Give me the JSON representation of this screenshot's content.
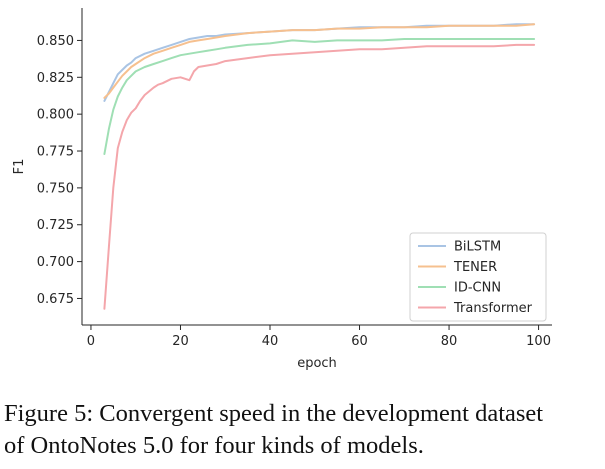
{
  "caption": {
    "line1": "Figure 5: Convergent speed in the development dataset",
    "line2": "of OntoNotes 5.0 for four kinds of models."
  },
  "chart_data": {
    "type": "line",
    "title": "",
    "xlabel": "epoch",
    "ylabel": "F1",
    "xlim": [
      -2,
      103
    ],
    "ylim": [
      0.657,
      0.872
    ],
    "x_ticks": [
      0,
      20,
      40,
      60,
      80,
      100
    ],
    "y_ticks": [
      0.675,
      0.7,
      0.725,
      0.75,
      0.775,
      0.8,
      0.825,
      0.85
    ],
    "x_tick_labels": [
      "0",
      "20",
      "40",
      "60",
      "80",
      "100"
    ],
    "y_tick_labels": [
      "0.675",
      "0.700",
      "0.725",
      "0.750",
      "0.775",
      "0.800",
      "0.825",
      "0.850"
    ],
    "grid": false,
    "legend_position": "lower-right",
    "series": [
      {
        "name": "BiLSTM",
        "color": "#a9c4e4",
        "x": [
          3,
          4,
          5,
          6,
          7,
          8,
          9,
          10,
          12,
          14,
          16,
          18,
          20,
          22,
          24,
          26,
          28,
          30,
          35,
          40,
          45,
          50,
          55,
          60,
          65,
          70,
          75,
          80,
          85,
          90,
          95,
          99
        ],
        "y": [
          0.809,
          0.815,
          0.821,
          0.827,
          0.83,
          0.833,
          0.835,
          0.838,
          0.841,
          0.843,
          0.845,
          0.847,
          0.849,
          0.851,
          0.852,
          0.853,
          0.853,
          0.854,
          0.855,
          0.856,
          0.857,
          0.857,
          0.858,
          0.859,
          0.859,
          0.859,
          0.86,
          0.86,
          0.86,
          0.86,
          0.861,
          0.861
        ]
      },
      {
        "name": "TENER",
        "color": "#f6c08f",
        "x": [
          3,
          4,
          5,
          6,
          7,
          8,
          9,
          10,
          12,
          14,
          16,
          18,
          20,
          22,
          24,
          26,
          28,
          30,
          35,
          40,
          45,
          50,
          55,
          60,
          65,
          70,
          75,
          80,
          85,
          90,
          95,
          99
        ],
        "y": [
          0.811,
          0.814,
          0.818,
          0.822,
          0.826,
          0.829,
          0.832,
          0.834,
          0.838,
          0.841,
          0.843,
          0.845,
          0.847,
          0.849,
          0.85,
          0.851,
          0.852,
          0.853,
          0.855,
          0.856,
          0.857,
          0.857,
          0.858,
          0.858,
          0.859,
          0.859,
          0.859,
          0.86,
          0.86,
          0.86,
          0.86,
          0.861
        ]
      },
      {
        "name": "ID-CNN",
        "color": "#9fdfb4",
        "x": [
          3,
          4,
          5,
          6,
          7,
          8,
          9,
          10,
          12,
          14,
          16,
          18,
          20,
          22,
          24,
          26,
          28,
          30,
          35,
          40,
          45,
          50,
          55,
          60,
          65,
          70,
          75,
          80,
          85,
          90,
          95,
          99
        ],
        "y": [
          0.773,
          0.79,
          0.803,
          0.812,
          0.818,
          0.823,
          0.826,
          0.829,
          0.832,
          0.834,
          0.836,
          0.838,
          0.84,
          0.841,
          0.842,
          0.843,
          0.844,
          0.845,
          0.847,
          0.848,
          0.85,
          0.849,
          0.85,
          0.85,
          0.85,
          0.851,
          0.851,
          0.851,
          0.851,
          0.851,
          0.851,
          0.851
        ]
      },
      {
        "name": "Transformer",
        "color": "#f4a6ab",
        "x": [
          3,
          4,
          5,
          6,
          7,
          8,
          9,
          10,
          11,
          12,
          14,
          15,
          16,
          18,
          20,
          22,
          23,
          24,
          26,
          28,
          30,
          35,
          40,
          45,
          50,
          55,
          60,
          65,
          70,
          75,
          80,
          85,
          90,
          95,
          99
        ],
        "y": [
          0.668,
          0.71,
          0.75,
          0.777,
          0.788,
          0.796,
          0.801,
          0.804,
          0.809,
          0.813,
          0.818,
          0.82,
          0.821,
          0.824,
          0.825,
          0.823,
          0.829,
          0.832,
          0.833,
          0.834,
          0.836,
          0.838,
          0.84,
          0.841,
          0.842,
          0.843,
          0.844,
          0.844,
          0.845,
          0.846,
          0.846,
          0.846,
          0.846,
          0.847,
          0.847
        ]
      }
    ]
  }
}
